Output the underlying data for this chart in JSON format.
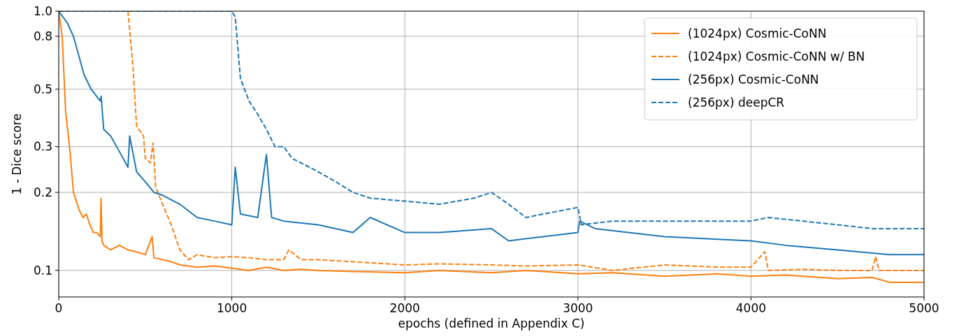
{
  "chart_data": {
    "type": "line",
    "xlabel": "epochs (defined in Appendix C)",
    "ylabel": "1 - Dice score",
    "log": "y",
    "grid": true,
    "legend": "top right",
    "xlim": [
      0,
      5000
    ],
    "xticks": [
      0,
      1000,
      2000,
      3000,
      4000,
      5000
    ],
    "ylim": [
      0.079,
      1.0
    ],
    "yticks": [
      0.1,
      0.2,
      0.3,
      0.5,
      0.8,
      {
        "value": 1.0,
        "label": "1.0"
      }
    ],
    "series": [
      {
        "name": "(1024px) Cosmic-CoNN",
        "color": "#ff7f0e",
        "line_style": "solid",
        "x": [
          0,
          20,
          40,
          65,
          85,
          120,
          140,
          160,
          180,
          200,
          220,
          240,
          245,
          250,
          260,
          300,
          350,
          400,
          450,
          500,
          540,
          550,
          600,
          650,
          700,
          800,
          900,
          1000,
          1100,
          1200,
          1300,
          1400,
          1500,
          1700,
          2000,
          2200,
          2500,
          2700,
          3000,
          3200,
          3500,
          3800,
          4000,
          4200,
          4500,
          4700,
          4800,
          5000
        ],
        "values": [
          1.0,
          0.8,
          0.41,
          0.29,
          0.2,
          0.17,
          0.16,
          0.165,
          0.15,
          0.14,
          0.14,
          0.135,
          0.19,
          0.13,
          0.125,
          0.12,
          0.125,
          0.12,
          0.118,
          0.115,
          0.135,
          0.112,
          0.11,
          0.108,
          0.105,
          0.103,
          0.104,
          0.102,
          0.1,
          0.103,
          0.1,
          0.101,
          0.1,
          0.099,
          0.098,
          0.1,
          0.098,
          0.1,
          0.097,
          0.098,
          0.095,
          0.097,
          0.095,
          0.096,
          0.093,
          0.094,
          0.09,
          0.09
        ]
      },
      {
        "name": "(1024px) Cosmic-CoNN w/ BN",
        "color": "#ff7f0e",
        "line_style": "dashed",
        "x": [
          400,
          430,
          450,
          490,
          500,
          530,
          545,
          560,
          600,
          650,
          700,
          750,
          800,
          900,
          1000,
          1100,
          1200,
          1300,
          1330,
          1400,
          1500,
          1700,
          2000,
          2200,
          2500,
          2700,
          3000,
          3200,
          3500,
          3800,
          4000,
          4080,
          4100,
          4300,
          4500,
          4700,
          4720,
          4740,
          5000
        ],
        "values": [
          1.0,
          0.6,
          0.36,
          0.33,
          0.27,
          0.26,
          0.31,
          0.21,
          0.18,
          0.15,
          0.12,
          0.11,
          0.115,
          0.112,
          0.113,
          0.112,
          0.11,
          0.11,
          0.12,
          0.11,
          0.11,
          0.108,
          0.105,
          0.106,
          0.105,
          0.104,
          0.105,
          0.1,
          0.105,
          0.103,
          0.103,
          0.118,
          0.1,
          0.101,
          0.1,
          0.1,
          0.113,
          0.1,
          0.1
        ]
      },
      {
        "name": "(256px) Cosmic-CoNN",
        "color": "#1f77b4",
        "line_style": "solid",
        "x": [
          0,
          50,
          85,
          146,
          187,
          240,
          245,
          260,
          300,
          360,
          400,
          410,
          450,
          500,
          550,
          600,
          700,
          800,
          900,
          1000,
          1020,
          1050,
          1150,
          1200,
          1230,
          1300,
          1500,
          1700,
          1800,
          2000,
          2200,
          2500,
          2600,
          2800,
          3000,
          3010,
          3100,
          3500,
          4000,
          4200,
          4500,
          4800,
          5000
        ],
        "values": [
          1.0,
          0.9,
          0.8,
          0.57,
          0.5,
          0.45,
          0.47,
          0.35,
          0.33,
          0.28,
          0.25,
          0.33,
          0.24,
          0.22,
          0.2,
          0.195,
          0.18,
          0.16,
          0.155,
          0.15,
          0.25,
          0.165,
          0.16,
          0.28,
          0.16,
          0.155,
          0.15,
          0.14,
          0.16,
          0.14,
          0.14,
          0.145,
          0.13,
          0.135,
          0.14,
          0.155,
          0.145,
          0.135,
          0.13,
          0.125,
          0.12,
          0.115,
          0.115
        ]
      },
      {
        "name": "(256px) deepCR",
        "color": "#1f77b4",
        "line_style": "dashed",
        "x": [
          0,
          1000,
          1020,
          1050,
          1100,
          1150,
          1200,
          1250,
          1300,
          1350,
          1400,
          1500,
          1600,
          1700,
          1800,
          2000,
          2200,
          2400,
          2500,
          2600,
          2700,
          2800,
          3000,
          3020,
          3200,
          3500,
          4000,
          4100,
          4500,
          4700,
          5000
        ],
        "values": [
          1.0,
          1.0,
          0.95,
          0.55,
          0.45,
          0.4,
          0.35,
          0.3,
          0.3,
          0.27,
          0.26,
          0.24,
          0.22,
          0.2,
          0.19,
          0.185,
          0.18,
          0.19,
          0.2,
          0.18,
          0.16,
          0.165,
          0.175,
          0.15,
          0.155,
          0.155,
          0.155,
          0.16,
          0.15,
          0.145,
          0.145
        ]
      }
    ]
  }
}
